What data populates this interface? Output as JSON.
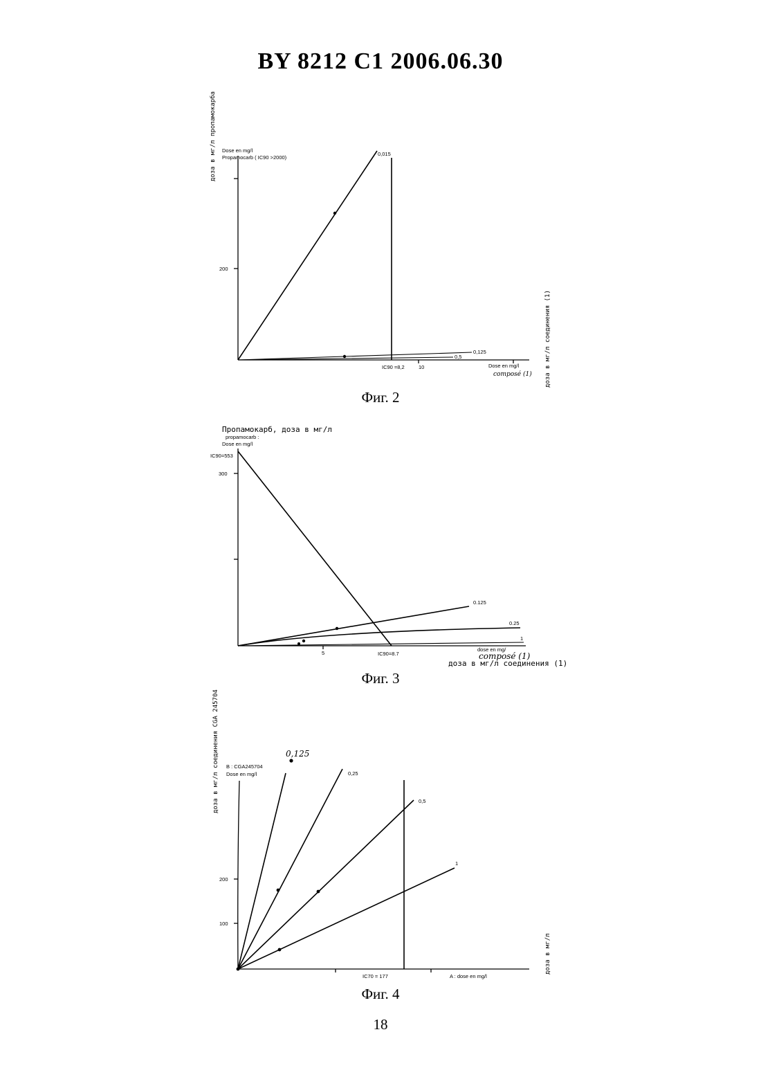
{
  "header": "BY 8212 C1 2006.06.30",
  "page_number": "18",
  "figures": [
    {
      "caption": "Фиг. 2",
      "y_axis_cyrillic": "доза в мг/л пропамокарба",
      "x_axis_cyrillic": "доза в мг/л соединения (1)",
      "legend_line1": "Dose        en mg/l",
      "legend_line2": "Propamocarb ( IC90 >2000)",
      "y_tick_200": "200",
      "x_tick_10": "10",
      "ic_label": "IC90 =8,2",
      "x_axis_label": "Dose      en mg/l",
      "x_axis_handwritten": "composé (1)",
      "lines": [
        {
          "label": "0,015"
        },
        {
          "label": "0,125"
        },
        {
          "label": "0,5"
        }
      ]
    },
    {
      "caption": "Фиг. 3",
      "y_axis_cyrillic": "Пропамокарб, доза в мг/л",
      "y_label_line1": "propamocarb :",
      "y_label_line2": "Dose en mg/l",
      "ic90_y_label": "IC90=553",
      "y_tick_300": "300",
      "x_tick_5": "5",
      "ic_label": "IC90=8.7",
      "x_axis_label": "dose en mg/",
      "x_axis_handwritten": "composé (1)",
      "x_axis_cyrillic": "доза в мг/л соединения (1)",
      "lines": [
        {
          "label": "0.125"
        },
        {
          "label": "0.25"
        },
        {
          "label": "1"
        }
      ]
    },
    {
      "caption": "Фиг. 4",
      "y_axis_cyrillic": "доза в мг/л соединения CGA 245704",
      "x_axis_cyrillic": "доза в мг/л",
      "legend_line1": "B : CGA245704",
      "legend_line2": "Dose en mg/l",
      "y_tick_200": "200",
      "y_tick_100": "100",
      "ic_label": "IC70 = 177",
      "x_axis_label": "A : dose en mg/l",
      "lines": [
        {
          "label": "0,125"
        },
        {
          "label": "0,25"
        },
        {
          "label": "0,5"
        },
        {
          "label": "1"
        }
      ]
    }
  ]
}
